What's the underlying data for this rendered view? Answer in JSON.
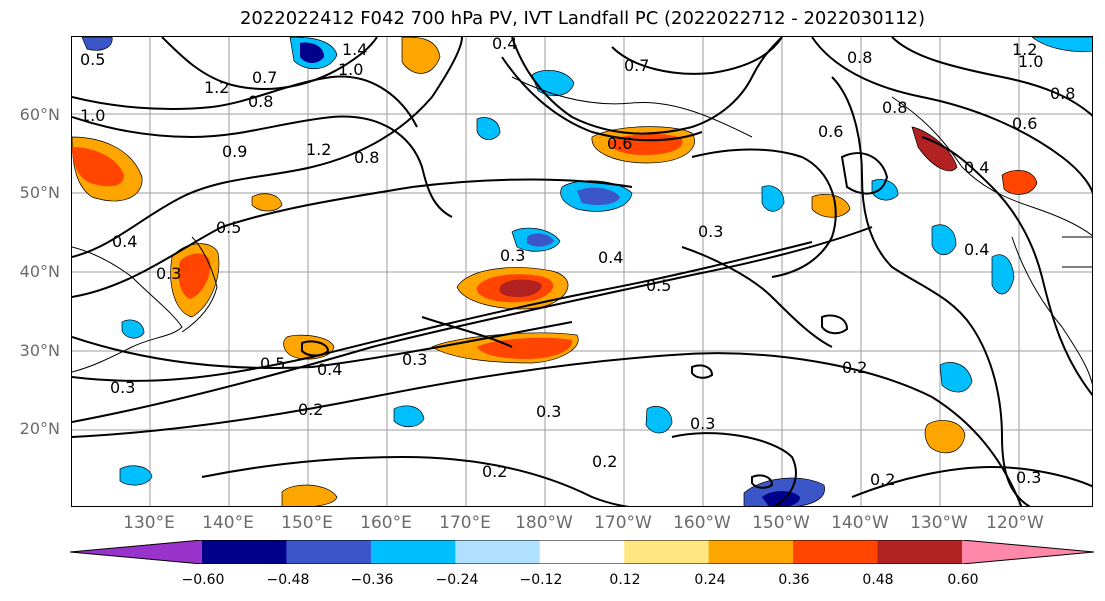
{
  "title": "2022022412 F042 700 hPa PV, IVT Landfall PC (2022022712 - 2022030112)",
  "lat_labels": [
    "60°N",
    "50°N",
    "40°N",
    "30°N",
    "20°N"
  ],
  "lon_labels": [
    "130°E",
    "140°E",
    "150°E",
    "160°E",
    "170°E",
    "180°W",
    "170°W",
    "160°W",
    "150°W",
    "140°W",
    "130°W",
    "120°W"
  ],
  "contour_labels": [
    "1.4",
    "1.0",
    "0.7",
    "1.2",
    "0.8",
    "1.0",
    "1.2",
    "0.9",
    "0.8",
    "0.7",
    "0.6",
    "0.8",
    "0.5",
    "0.4",
    "0.3",
    "0.5",
    "0.4",
    "0.3",
    "0.5",
    "0.3",
    "0.4",
    "0.3",
    "0.5",
    "0.4",
    "0.3",
    "0.2",
    "0.3",
    "0.2",
    "0.2",
    "0.2",
    "0.2",
    "0.3",
    "0.6",
    "0.8",
    "0.4",
    "1.2",
    "1.0",
    "0.8",
    "0.4",
    "0.6",
    "0.3"
  ],
  "colorbar": {
    "ticks": [
      "−0.60",
      "−0.48",
      "−0.36",
      "−0.24",
      "−0.12",
      "0.12",
      "0.24",
      "0.36",
      "0.48",
      "0.60"
    ],
    "colors": [
      "#9933cc",
      "#00008b",
      "#3b56c9",
      "#00bfff",
      "#b0e0ff",
      "#ffffff",
      "#ffe680",
      "#ffa500",
      "#ff4500",
      "#b22222",
      "#ff88aa"
    ]
  }
}
